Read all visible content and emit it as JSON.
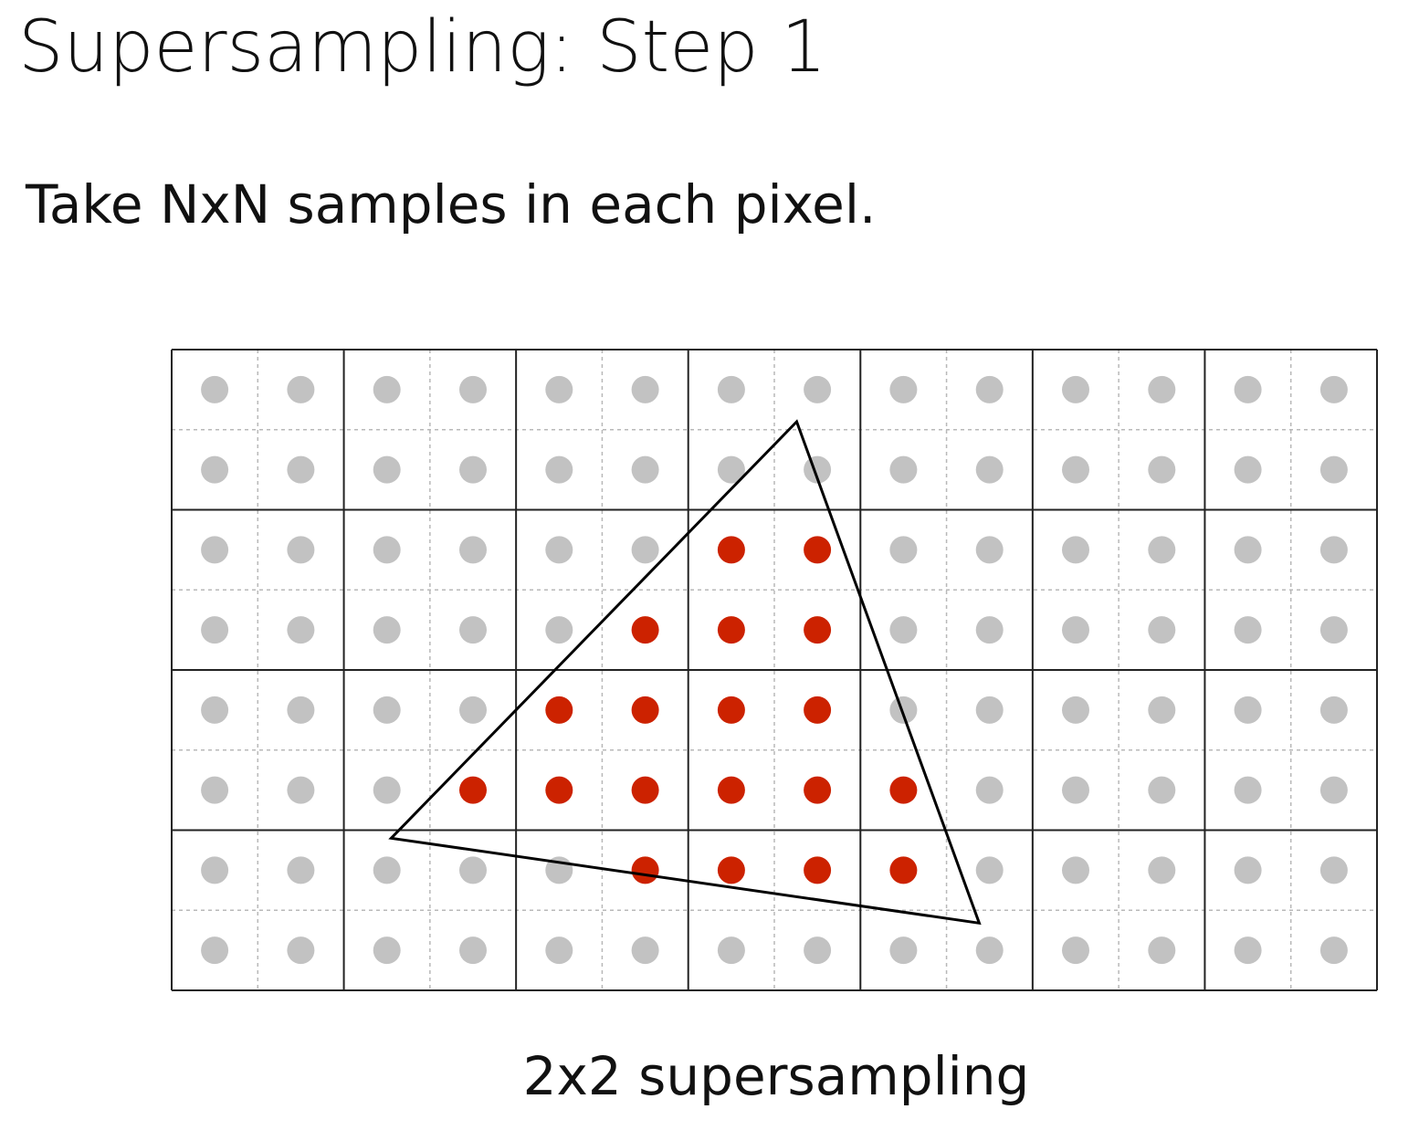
{
  "slide": {
    "title": "Supersampling: Step 1",
    "subtitle": "Take NxN samples in each pixel.",
    "caption": "2x2 supersampling"
  },
  "grid": {
    "pixel_columns": 7,
    "pixel_rows": 4,
    "samples_per_pixel_axis": 2
  },
  "colors": {
    "sample_outside": "#c2c2c2",
    "sample_inside": "#cc2200",
    "pixel_line": "#222222",
    "subpixel_line": "#b8b8b8",
    "triangle_stroke": "#000000"
  },
  "triangle_vertices_in_sample_units": [
    [
      7.26,
      0.9
    ],
    [
      2.55,
      6.1
    ],
    [
      9.38,
      7.16
    ]
  ]
}
